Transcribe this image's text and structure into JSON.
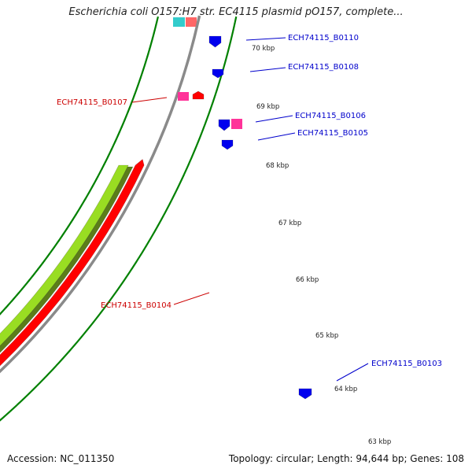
{
  "title": "Escherichia coli O157:H7 str. EC4115 plasmid pO157, complete...",
  "footer": {
    "accession": "Accession: NC_011350",
    "summary": "Topology: circular; Length: 94,644 bp; Genes: 108"
  },
  "colors": {
    "backbone": "#8a8a8a",
    "forward_gene": "#ff0000",
    "reverse_gene": "#0000ee",
    "pseudo_gene": "#ff3399",
    "cyan_feature": "#33cccc",
    "dark_green_feature": "#5b7d1a",
    "light_green_feature": "#99dd22",
    "tick_color": "#008000",
    "label_forward": "#cc0000",
    "label_reverse": "#0000cc"
  },
  "kbp_labels": [
    "70 kbp",
    "69 kbp",
    "68 kbp",
    "67 kbp",
    "66 kbp",
    "65 kbp",
    "64 kbp",
    "63 kbp"
  ],
  "gene_labels": [
    {
      "text": "ECH74115_B0110",
      "strand": "reverse"
    },
    {
      "text": "ECH74115_B0108",
      "strand": "reverse"
    },
    {
      "text": "ECH74115_B0107",
      "strand": "forward"
    },
    {
      "text": "ECH74115_B0106",
      "strand": "reverse"
    },
    {
      "text": "ECH74115_B0105",
      "strand": "reverse"
    },
    {
      "text": "ECH74115_B0104",
      "strand": "forward"
    },
    {
      "text": "ECH74115_B0103",
      "strand": "reverse"
    }
  ]
}
